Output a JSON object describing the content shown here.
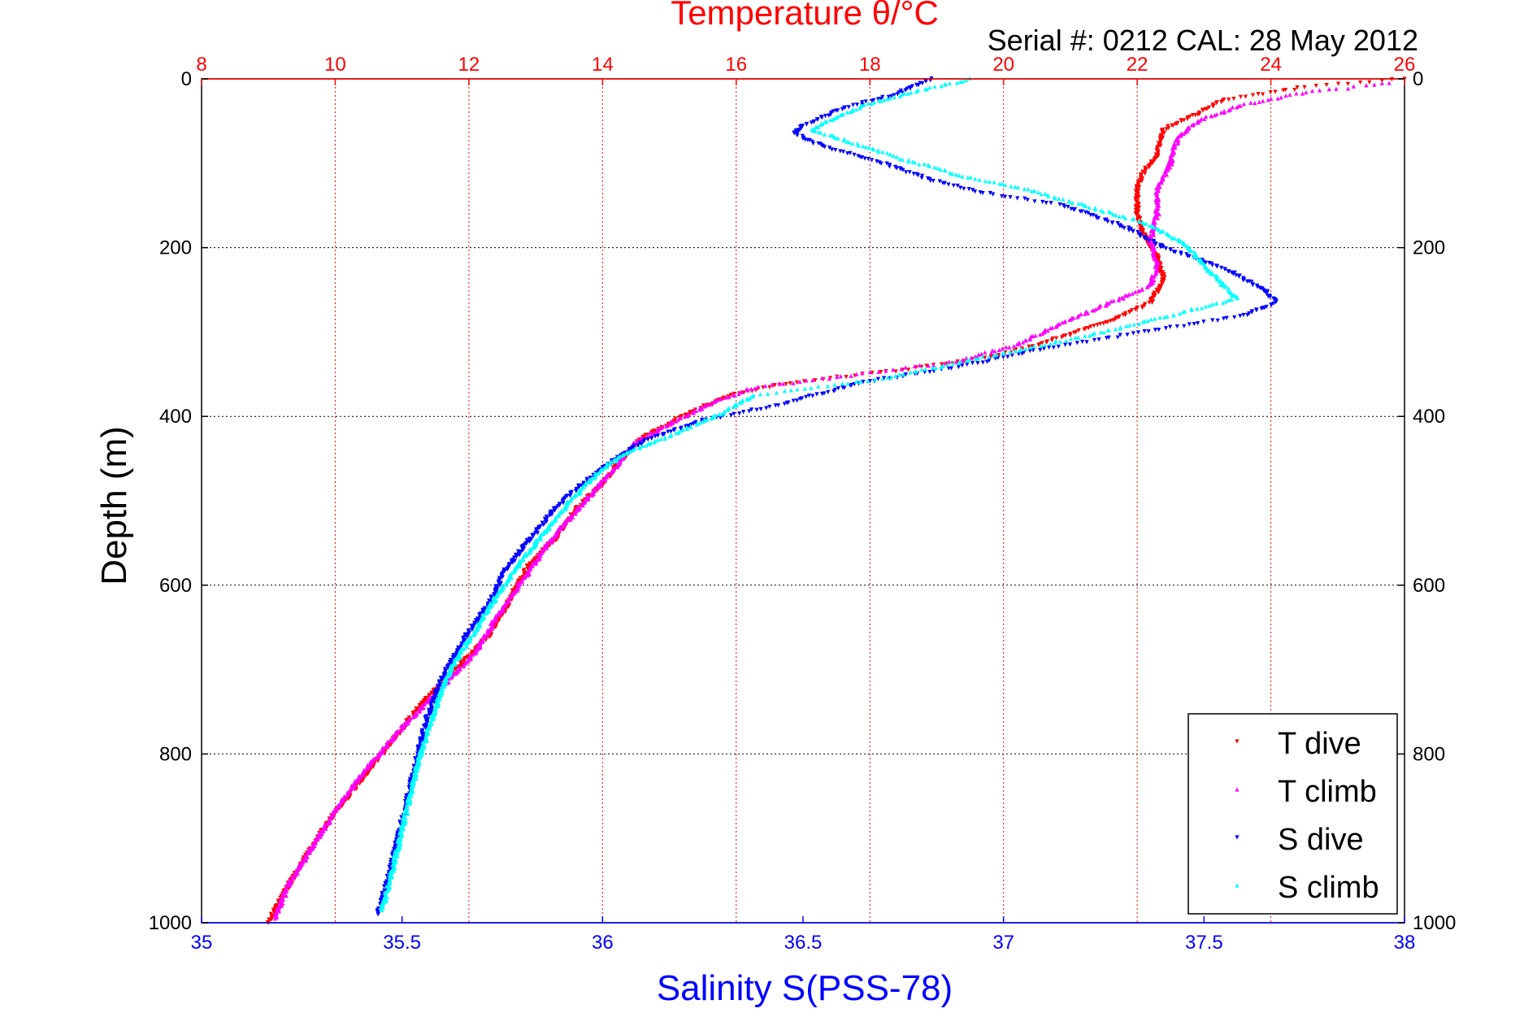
{
  "colors": {
    "temperature": "#ff0000",
    "salinity": "#0000ff",
    "T_dive": "#ff0000",
    "T_climb": "#ff00ff",
    "S_dive": "#0000ff",
    "S_climb": "#00ffff",
    "grid": "#000000",
    "frame": "#000000"
  },
  "chart_data": {
    "type": "scatter",
    "title": "Temperature θ/°C",
    "subtitle": "Serial #: 0212  CAL: 28 May 2012",
    "ylabel": "Depth (m)",
    "xlabel": "Salinity S(PSS-78)",
    "x_top_label": "",
    "ylim": [
      0,
      1000
    ],
    "y_reversed": true,
    "x_top_lim": [
      8,
      26
    ],
    "x_bottom_lim": [
      35,
      38
    ],
    "y_ticks": [
      "0",
      "200",
      "400",
      "600",
      "800",
      "1000"
    ],
    "x_top_ticks": [
      "8",
      "10",
      "12",
      "14",
      "16",
      "18",
      "20",
      "22",
      "24",
      "26"
    ],
    "x_bottom_ticks": [
      "35",
      "35.5",
      "36",
      "36.5",
      "37",
      "37.5",
      "38"
    ],
    "grid": true,
    "legend_position": "bottom-right",
    "series": [
      {
        "name": "T dive",
        "axis": "top",
        "marker": "down-triangle",
        "points": [
          [
            26,
            0
          ],
          [
            24.5,
            10
          ],
          [
            23.3,
            25
          ],
          [
            22.8,
            45
          ],
          [
            22.4,
            60
          ],
          [
            22.3,
            90
          ],
          [
            22.1,
            110
          ],
          [
            22.0,
            130
          ],
          [
            22.0,
            160
          ],
          [
            22.1,
            185
          ],
          [
            22.3,
            210
          ],
          [
            22.4,
            240
          ],
          [
            22.2,
            265
          ],
          [
            21.5,
            290
          ],
          [
            20.5,
            315
          ],
          [
            19.8,
            330
          ],
          [
            18.5,
            345
          ],
          [
            16.8,
            360
          ],
          [
            15.9,
            375
          ],
          [
            15.2,
            400
          ],
          [
            14.6,
            425
          ],
          [
            14.3,
            450
          ],
          [
            14.0,
            480
          ],
          [
            13.6,
            510
          ],
          [
            13.3,
            545
          ],
          [
            12.9,
            575
          ],
          [
            12.6,
            620
          ],
          [
            12.3,
            660
          ],
          [
            11.8,
            700
          ],
          [
            11.3,
            740
          ],
          [
            10.9,
            780
          ],
          [
            10.4,
            830
          ],
          [
            9.9,
            880
          ],
          [
            9.5,
            930
          ],
          [
            9.2,
            970
          ],
          [
            9.0,
            1000
          ]
        ]
      },
      {
        "name": "T climb",
        "axis": "top",
        "marker": "up-triangle",
        "points": [
          [
            25.8,
            5
          ],
          [
            24.6,
            15
          ],
          [
            23.6,
            30
          ],
          [
            22.9,
            50
          ],
          [
            22.6,
            70
          ],
          [
            22.5,
            100
          ],
          [
            22.3,
            130
          ],
          [
            22.3,
            160
          ],
          [
            22.2,
            190
          ],
          [
            22.3,
            220
          ],
          [
            22.2,
            245
          ],
          [
            21.6,
            265
          ],
          [
            21.0,
            285
          ],
          [
            20.2,
            315
          ],
          [
            19.3,
            335
          ],
          [
            17.8,
            350
          ],
          [
            16.3,
            365
          ],
          [
            15.6,
            385
          ],
          [
            15.1,
            405
          ],
          [
            14.5,
            430
          ],
          [
            14.2,
            460
          ],
          [
            13.8,
            495
          ],
          [
            13.4,
            530
          ],
          [
            13.1,
            560
          ],
          [
            12.8,
            595
          ],
          [
            12.4,
            640
          ],
          [
            12.1,
            680
          ],
          [
            11.6,
            720
          ],
          [
            11.1,
            760
          ],
          [
            10.6,
            805
          ],
          [
            10.1,
            855
          ],
          [
            9.7,
            905
          ],
          [
            9.3,
            955
          ],
          [
            9.1,
            995
          ]
        ]
      },
      {
        "name": "S dive",
        "axis": "bottom",
        "marker": "down-triangle",
        "points": [
          [
            36.82,
            0
          ],
          [
            36.72,
            20
          ],
          [
            36.6,
            35
          ],
          [
            36.5,
            55
          ],
          [
            36.48,
            65
          ],
          [
            36.55,
            80
          ],
          [
            36.7,
            100
          ],
          [
            36.82,
            120
          ],
          [
            36.95,
            135
          ],
          [
            37.15,
            150
          ],
          [
            37.3,
            175
          ],
          [
            37.4,
            200
          ],
          [
            37.55,
            225
          ],
          [
            37.65,
            250
          ],
          [
            37.68,
            265
          ],
          [
            37.6,
            280
          ],
          [
            37.35,
            300
          ],
          [
            37.1,
            320
          ],
          [
            36.9,
            340
          ],
          [
            36.65,
            360
          ],
          [
            36.45,
            385
          ],
          [
            36.25,
            405
          ],
          [
            36.1,
            430
          ],
          [
            36.02,
            455
          ],
          [
            35.95,
            480
          ],
          [
            35.88,
            510
          ],
          [
            35.82,
            545
          ],
          [
            35.76,
            580
          ],
          [
            35.72,
            620
          ],
          [
            35.66,
            660
          ],
          [
            35.6,
            710
          ],
          [
            35.56,
            760
          ],
          [
            35.53,
            820
          ],
          [
            35.5,
            880
          ],
          [
            35.47,
            940
          ],
          [
            35.44,
            990
          ]
        ]
      },
      {
        "name": "S climb",
        "axis": "bottom",
        "marker": "up-triangle",
        "points": [
          [
            36.92,
            0
          ],
          [
            36.78,
            15
          ],
          [
            36.66,
            30
          ],
          [
            36.56,
            50
          ],
          [
            36.52,
            60
          ],
          [
            36.62,
            75
          ],
          [
            36.75,
            95
          ],
          [
            36.9,
            115
          ],
          [
            37.05,
            130
          ],
          [
            37.2,
            150
          ],
          [
            37.35,
            170
          ],
          [
            37.45,
            195
          ],
          [
            37.5,
            220
          ],
          [
            37.55,
            245
          ],
          [
            37.58,
            260
          ],
          [
            37.42,
            280
          ],
          [
            37.2,
            305
          ],
          [
            36.95,
            330
          ],
          [
            36.7,
            355
          ],
          [
            36.38,
            375
          ],
          [
            36.28,
            400
          ],
          [
            36.18,
            420
          ],
          [
            36.05,
            445
          ],
          [
            35.98,
            470
          ],
          [
            35.92,
            500
          ],
          [
            35.86,
            535
          ],
          [
            35.8,
            570
          ],
          [
            35.74,
            610
          ],
          [
            35.68,
            655
          ],
          [
            35.62,
            700
          ],
          [
            35.58,
            750
          ],
          [
            35.54,
            810
          ],
          [
            35.51,
            870
          ],
          [
            35.48,
            930
          ],
          [
            35.45,
            985
          ]
        ]
      }
    ]
  }
}
